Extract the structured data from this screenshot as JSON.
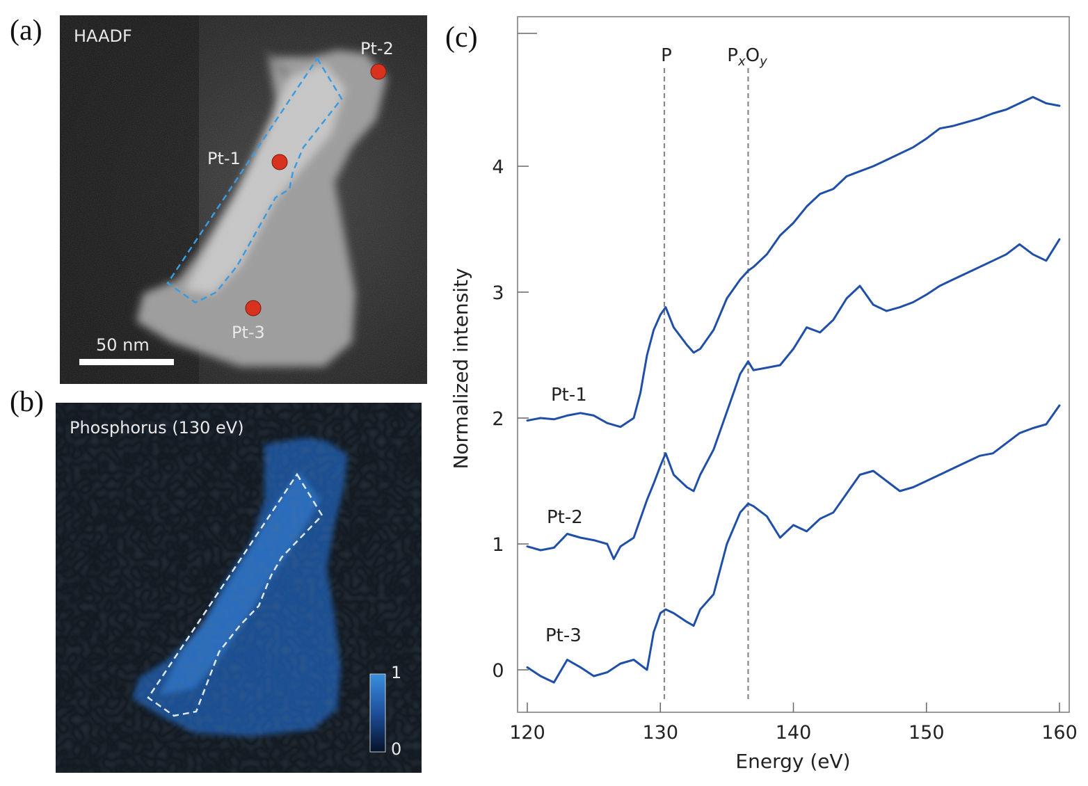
{
  "figure": {
    "panel_a": {
      "letter": "(a)",
      "modality": "HAADF",
      "scale_bar": "50 nm",
      "points": [
        {
          "label": "Pt-1",
          "color": "#d9331f"
        },
        {
          "label": "Pt-2",
          "color": "#d9331f"
        },
        {
          "label": "Pt-3",
          "color": "#d9331f"
        }
      ],
      "outline_color": "#3a9be0"
    },
    "panel_b": {
      "letter": "(b)",
      "title": "Phosphorus (130 eV)",
      "colorbar_max": "1",
      "colorbar_min": "0",
      "outline_color": "#dde8f0"
    },
    "panel_c": {
      "letter": "(c)"
    }
  },
  "chart_data": {
    "type": "line",
    "title": "",
    "xlabel": "Energy (eV)",
    "ylabel": "Normalized intensity",
    "xlim": [
      120,
      160
    ],
    "ylim": [
      -0.3,
      5.2
    ],
    "xticks": [
      120,
      130,
      140,
      150,
      160
    ],
    "yticks": [
      0,
      1,
      2,
      3,
      4
    ],
    "line_color": "#1f4fa8",
    "annotations": [
      {
        "label": "P",
        "x": 130.3
      },
      {
        "label": "PxOy",
        "x": 136.6,
        "display_main": "P",
        "display_sub1": "x",
        "display_mid": "O",
        "display_sub2": "y"
      }
    ],
    "series": [
      {
        "name": "Pt-1",
        "x": [
          120,
          121,
          122,
          123,
          124,
          125,
          126,
          127,
          128,
          128.5,
          129,
          129.5,
          130,
          130.4,
          131,
          132,
          132.5,
          133,
          134,
          135,
          136,
          136.6,
          137,
          138,
          139,
          140,
          141,
          142,
          143,
          144,
          145,
          146,
          147,
          148,
          149,
          150,
          151,
          152,
          153,
          154,
          155,
          156,
          157,
          158,
          159,
          160
        ],
        "y": [
          1.98,
          2.0,
          1.99,
          2.02,
          2.04,
          2.02,
          1.96,
          1.93,
          2.0,
          2.2,
          2.5,
          2.7,
          2.82,
          2.88,
          2.72,
          2.58,
          2.52,
          2.55,
          2.7,
          2.95,
          3.1,
          3.17,
          3.2,
          3.3,
          3.45,
          3.55,
          3.68,
          3.78,
          3.82,
          3.92,
          3.96,
          4.0,
          4.05,
          4.1,
          4.15,
          4.22,
          4.3,
          4.32,
          4.35,
          4.38,
          4.42,
          4.45,
          4.5,
          4.55,
          4.5,
          4.48
        ]
      },
      {
        "name": "Pt-2",
        "x": [
          120,
          121,
          122,
          123,
          124,
          125,
          126,
          126.5,
          127,
          128,
          129,
          129.5,
          130,
          130.4,
          131,
          131.5,
          132,
          132.5,
          133,
          134,
          135,
          136,
          136.6,
          137,
          138,
          139,
          140,
          141,
          142,
          143,
          144,
          145,
          146,
          147,
          148,
          149,
          150,
          151,
          152,
          153,
          154,
          155,
          156,
          157,
          158,
          159,
          160
        ],
        "y": [
          0.98,
          0.95,
          0.97,
          1.08,
          1.05,
          1.03,
          1.0,
          0.88,
          0.98,
          1.05,
          1.35,
          1.48,
          1.62,
          1.72,
          1.55,
          1.5,
          1.45,
          1.42,
          1.55,
          1.75,
          2.05,
          2.35,
          2.45,
          2.38,
          2.4,
          2.42,
          2.55,
          2.72,
          2.68,
          2.78,
          2.95,
          3.05,
          2.9,
          2.85,
          2.88,
          2.92,
          2.98,
          3.05,
          3.1,
          3.15,
          3.2,
          3.25,
          3.3,
          3.38,
          3.3,
          3.25,
          3.42
        ]
      },
      {
        "name": "Pt-3",
        "x": [
          120,
          121,
          122,
          123,
          124,
          125,
          126,
          127,
          128,
          129,
          129.5,
          130,
          130.4,
          131,
          132,
          132.5,
          133,
          134,
          135,
          136,
          136.6,
          137,
          138,
          139,
          140,
          141,
          142,
          143,
          144,
          145,
          146,
          147,
          148,
          149,
          150,
          151,
          152,
          153,
          154,
          155,
          156,
          157,
          158,
          159,
          160
        ],
        "y": [
          0.02,
          -0.05,
          -0.1,
          0.08,
          0.02,
          -0.05,
          -0.02,
          0.05,
          0.08,
          0.0,
          0.3,
          0.45,
          0.48,
          0.45,
          0.38,
          0.35,
          0.48,
          0.6,
          1.0,
          1.25,
          1.32,
          1.3,
          1.22,
          1.05,
          1.15,
          1.1,
          1.2,
          1.25,
          1.4,
          1.55,
          1.58,
          1.5,
          1.42,
          1.45,
          1.5,
          1.55,
          1.6,
          1.65,
          1.7,
          1.72,
          1.8,
          1.88,
          1.92,
          1.95,
          2.1
        ]
      }
    ]
  }
}
